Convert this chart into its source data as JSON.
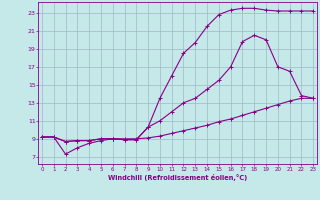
{
  "xlabel": "Windchill (Refroidissement éolien,°C)",
  "x_ticks": [
    0,
    1,
    2,
    3,
    4,
    5,
    6,
    7,
    8,
    9,
    10,
    11,
    12,
    13,
    14,
    15,
    16,
    17,
    18,
    19,
    20,
    21,
    22,
    23
  ],
  "y_ticks": [
    7,
    9,
    11,
    13,
    15,
    17,
    19,
    21,
    23
  ],
  "xlim": [
    -0.3,
    23.3
  ],
  "ylim": [
    6.2,
    24.2
  ],
  "bg_color": "#c5e8e8",
  "grid_color": "#a0b8c8",
  "line_color": "#880088",
  "line1_x": [
    0,
    1,
    2,
    3,
    4,
    5,
    6,
    7,
    8,
    9,
    10,
    11,
    12,
    13,
    14,
    15,
    16,
    17,
    18,
    19,
    20,
    21,
    22,
    23
  ],
  "line1_y": [
    9.2,
    9.2,
    8.7,
    8.8,
    8.8,
    9.0,
    9.0,
    8.9,
    8.9,
    10.3,
    13.5,
    16.0,
    18.5,
    19.7,
    21.5,
    22.8,
    23.3,
    23.5,
    23.5,
    23.3,
    23.2,
    23.2,
    23.2,
    23.2
  ],
  "line2_x": [
    0,
    1,
    2,
    3,
    4,
    5,
    6,
    7,
    8,
    9,
    10,
    11,
    12,
    13,
    14,
    15,
    16,
    17,
    18,
    19,
    20,
    21,
    22,
    23
  ],
  "line2_y": [
    9.2,
    9.2,
    8.7,
    8.8,
    8.8,
    9.0,
    9.0,
    8.9,
    8.9,
    10.3,
    11.0,
    12.0,
    13.0,
    13.5,
    14.5,
    15.5,
    17.0,
    19.8,
    20.5,
    20.0,
    17.0,
    16.5,
    13.8,
    13.5
  ],
  "line3_x": [
    0,
    1,
    2,
    3,
    4,
    5,
    6,
    7,
    8,
    9,
    10,
    11,
    12,
    13,
    14,
    15,
    16,
    17,
    18,
    19,
    20,
    21,
    22,
    23
  ],
  "line3_y": [
    9.2,
    9.2,
    7.3,
    8.0,
    8.5,
    8.8,
    9.0,
    9.0,
    9.0,
    9.1,
    9.3,
    9.6,
    9.9,
    10.2,
    10.5,
    10.9,
    11.2,
    11.6,
    12.0,
    12.4,
    12.8,
    13.2,
    13.5,
    13.5
  ]
}
